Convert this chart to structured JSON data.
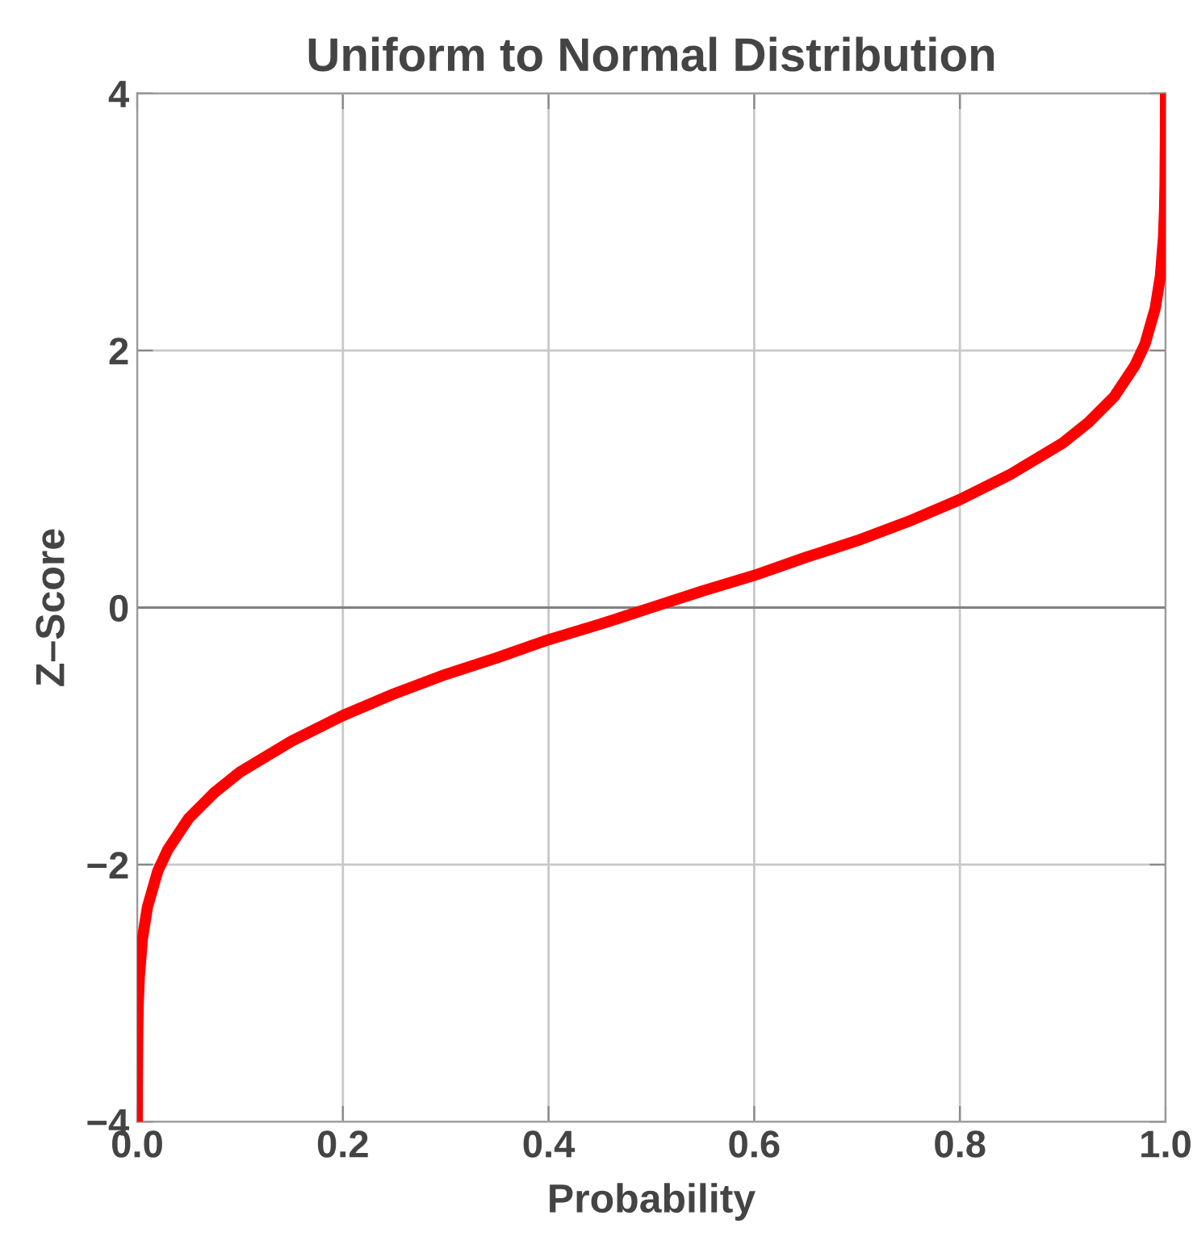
{
  "chart_data": {
    "type": "line",
    "title": "Uniform to Normal Distribution",
    "xlabel": "Probability",
    "ylabel": "Z–Score",
    "series": [
      {
        "color": "#ff0000",
        "x": [
          3.17e-05,
          0.0001,
          0.0005,
          0.001,
          0.002,
          0.005,
          0.01,
          0.02,
          0.03,
          0.05,
          0.075,
          0.1,
          0.15,
          0.2,
          0.25,
          0.3,
          0.35,
          0.4,
          0.45,
          0.5,
          0.55,
          0.6,
          0.65,
          0.7,
          0.75,
          0.8,
          0.85,
          0.9,
          0.925,
          0.95,
          0.97,
          0.98,
          0.99,
          0.995,
          0.998,
          0.999,
          0.9995,
          0.9999,
          0.9999683
        ],
        "values": [
          -4.0,
          -3.72,
          -3.29,
          -3.09,
          -2.88,
          -2.58,
          -2.33,
          -2.05,
          -1.88,
          -1.64,
          -1.44,
          -1.28,
          -1.04,
          -0.84,
          -0.67,
          -0.52,
          -0.39,
          -0.25,
          -0.13,
          0,
          0.13,
          0.25,
          0.39,
          0.52,
          0.67,
          0.84,
          1.04,
          1.28,
          1.44,
          1.64,
          1.88,
          2.05,
          2.33,
          2.58,
          2.88,
          3.09,
          3.29,
          3.72,
          4.0
        ]
      }
    ],
    "xlim": [
      0,
      1
    ],
    "ylim": [
      -4,
      4
    ],
    "xticks": [
      {
        "value": 0,
        "label": "0.0"
      },
      {
        "value": 0.2,
        "label": "0.2"
      },
      {
        "value": 0.4,
        "label": "0.4"
      },
      {
        "value": 0.6,
        "label": "0.6"
      },
      {
        "value": 0.8,
        "label": "0.8"
      },
      {
        "value": 1,
        "label": "1.0"
      }
    ],
    "yticks": [
      {
        "value": -4,
        "label": "−4"
      },
      {
        "value": -2,
        "label": "−2"
      },
      0,
      2,
      4
    ],
    "ref_lines": [
      {
        "axis": "y",
        "value": 0,
        "color": "#808080"
      }
    ],
    "grid": true,
    "marker": "none",
    "line_style": "solid"
  }
}
